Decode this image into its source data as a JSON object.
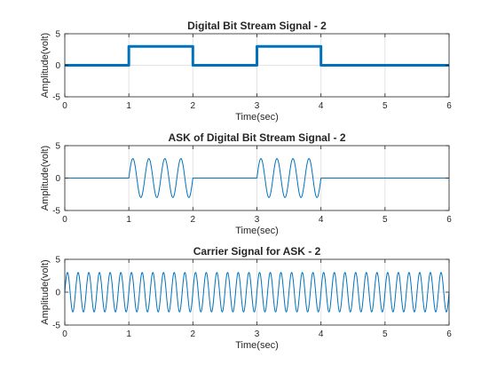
{
  "chart_data": [
    {
      "type": "line",
      "title": "Digital Bit Stream Signal - 2",
      "xlabel": "Time(sec)",
      "ylabel": "Amplitude(volt)",
      "xlim": [
        0,
        6
      ],
      "ylim": [
        -5,
        5
      ],
      "xticks": [
        0,
        1,
        2,
        3,
        4,
        5,
        6
      ],
      "yticks": [
        -5,
        0,
        5
      ],
      "grid": true,
      "color": "#0072BD",
      "line_width": "thick",
      "series": [
        {
          "kind": "step",
          "x": [
            0,
            1,
            1,
            2,
            2,
            3,
            3,
            4,
            4,
            6
          ],
          "values": [
            0,
            0,
            3,
            3,
            0,
            0,
            3,
            3,
            0,
            0
          ]
        }
      ]
    },
    {
      "type": "line",
      "title": "ASK of Digital Bit Stream Signal - 2",
      "xlabel": "Time(sec)",
      "ylabel": "Amplitude(volt)",
      "xlim": [
        0,
        6
      ],
      "ylim": [
        -5,
        5
      ],
      "xticks": [
        0,
        1,
        2,
        3,
        4,
        5,
        6
      ],
      "yticks": [
        -5,
        0,
        5
      ],
      "grid": true,
      "color": "#0072BD",
      "line_width": "thin",
      "series": [
        {
          "kind": "ask",
          "amplitude": 3,
          "frequency_hz": 4,
          "on_intervals": [
            [
              1,
              2
            ],
            [
              3,
              4
            ]
          ]
        }
      ]
    },
    {
      "type": "line",
      "title": "Carrier Signal for ASK - 2",
      "xlabel": "Time(sec)",
      "ylabel": "Amplitude(volt)",
      "xlim": [
        0,
        6
      ],
      "ylim": [
        -5,
        5
      ],
      "xticks": [
        0,
        1,
        2,
        3,
        4,
        5,
        6
      ],
      "yticks": [
        -5,
        0,
        5
      ],
      "grid": true,
      "color": "#0072BD",
      "line_width": "thin",
      "series": [
        {
          "kind": "sine",
          "amplitude": 3,
          "frequency_hz": 6
        }
      ]
    }
  ]
}
